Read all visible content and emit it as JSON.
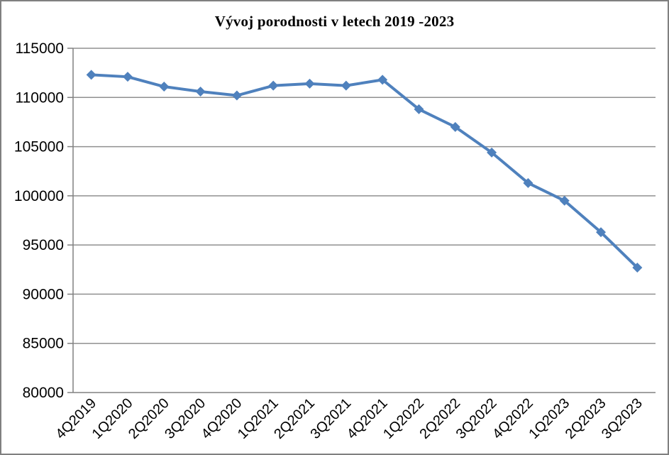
{
  "chart_data": {
    "type": "line",
    "title": "Vývoj porodnosti v letech 2019 -2023",
    "categories": [
      "4Q2019",
      "1Q2020",
      "2Q2020",
      "3Q2020",
      "4Q2020",
      "1Q2021",
      "2Q2021",
      "3Q2021",
      "4Q2021",
      "1Q2022",
      "2Q2022",
      "3Q2022",
      "4Q2022",
      "1Q2023",
      "2Q2023",
      "3Q2023"
    ],
    "values": [
      112300,
      112100,
      111100,
      110600,
      110200,
      111200,
      111400,
      111200,
      111800,
      108800,
      107000,
      104400,
      101300,
      99500,
      96300,
      92700
    ],
    "ylim": [
      80000,
      115000
    ],
    "ytick_step": 5000,
    "yticks": [
      115000,
      110000,
      105000,
      100000,
      95000,
      90000,
      85000,
      80000
    ],
    "xlabel": "",
    "ylabel": "",
    "grid": true,
    "legend": "none",
    "marker": "diamond",
    "x_label_rotation_deg": -45,
    "colors": {
      "line": "#4F81BD",
      "marker": "#4F81BD",
      "gridline": "#909090",
      "axis": "#808080",
      "text": "#000000",
      "frame_border": "#808080",
      "background": "#FFFFFF"
    }
  }
}
